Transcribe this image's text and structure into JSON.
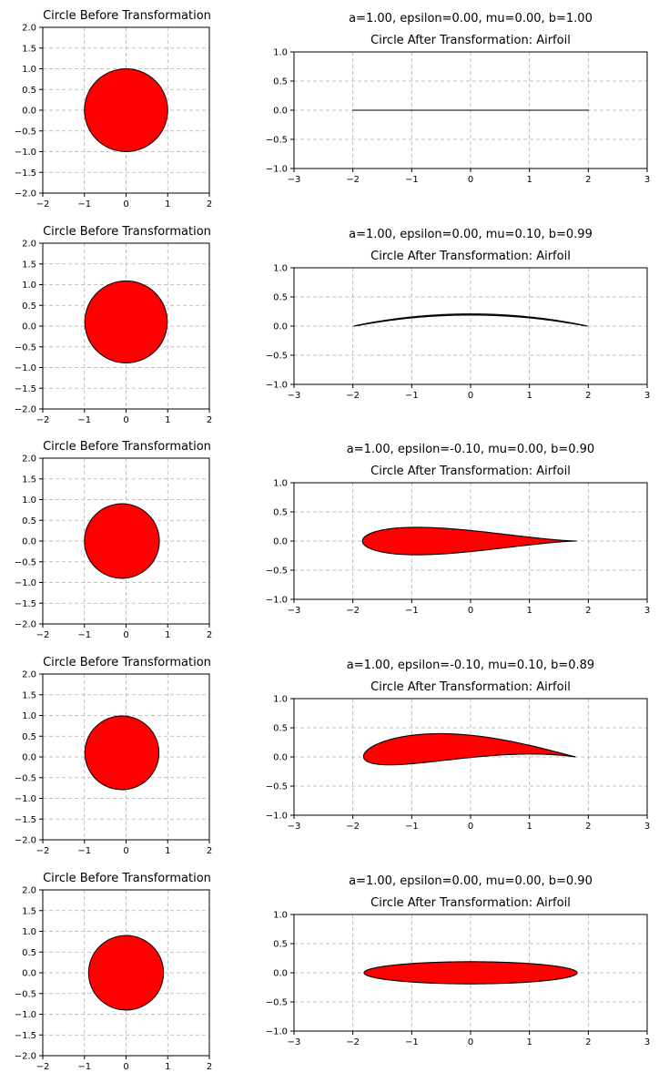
{
  "chart_data": [
    {
      "type": "line",
      "title": "Circle Before Transformation",
      "xlim": [
        -2,
        2
      ],
      "ylim": [
        -2,
        2
      ],
      "xticks": [
        "-2",
        "-1",
        "0",
        "1",
        "2"
      ],
      "yticks": [
        "-2.0",
        "-1.5",
        "-1.0",
        "-0.5",
        "0.0",
        "0.5",
        "1.0",
        "1.5",
        "2.0"
      ],
      "grid": true,
      "shape": "filled circle",
      "center": [
        0,
        0
      ],
      "radius": 1.0,
      "fill_color": "#ff0000",
      "edge_color": "#000000"
    },
    {
      "type": "line",
      "title": "a=1.00, epsilon=0.00, mu=0.00, b=1.00",
      "subtitle": "Circle After Transformation: Airfoil",
      "params": {
        "a": 1.0,
        "epsilon": 0.0,
        "mu": 0.0,
        "b": 1.0
      },
      "xlim": [
        -3,
        3
      ],
      "ylim": [
        -1,
        1
      ],
      "xticks": [
        "-3",
        "-2",
        "-1",
        "0",
        "1",
        "2",
        "3"
      ],
      "yticks": [
        "-1.0",
        "-0.5",
        "0.0",
        "0.5",
        "1.0"
      ],
      "grid": true,
      "shape": "filled airfoil",
      "fill_color": "#ff0000",
      "edge_color": "#000000"
    },
    {
      "type": "line",
      "title": "Circle Before Transformation",
      "xlim": [
        -2,
        2
      ],
      "ylim": [
        -2,
        2
      ],
      "xticks": [
        "-2",
        "-1",
        "0",
        "1",
        "2"
      ],
      "yticks": [
        "-2.0",
        "-1.5",
        "-1.0",
        "-0.5",
        "0.0",
        "0.5",
        "1.0",
        "1.5",
        "2.0"
      ],
      "grid": true,
      "shape": "filled circle",
      "center": [
        0,
        0.1
      ],
      "radius": 0.99,
      "fill_color": "#ff0000",
      "edge_color": "#000000"
    },
    {
      "type": "line",
      "title": "a=1.00, epsilon=0.00, mu=0.10, b=0.99",
      "subtitle": "Circle After Transformation: Airfoil",
      "params": {
        "a": 1.0,
        "epsilon": 0.0,
        "mu": 0.1,
        "b": 0.99
      },
      "xlim": [
        -3,
        3
      ],
      "ylim": [
        -1,
        1
      ],
      "xticks": [
        "-3",
        "-2",
        "-1",
        "0",
        "1",
        "2",
        "3"
      ],
      "yticks": [
        "-1.0",
        "-0.5",
        "0.0",
        "0.5",
        "1.0"
      ],
      "grid": true,
      "shape": "filled airfoil",
      "fill_color": "#ff0000",
      "edge_color": "#000000"
    },
    {
      "type": "line",
      "title": "Circle Before Transformation",
      "xlim": [
        -2,
        2
      ],
      "ylim": [
        -2,
        2
      ],
      "xticks": [
        "-2",
        "-1",
        "0",
        "1",
        "2"
      ],
      "yticks": [
        "-2.0",
        "-1.5",
        "-1.0",
        "-0.5",
        "0.0",
        "0.5",
        "1.0",
        "1.5",
        "2.0"
      ],
      "grid": true,
      "shape": "filled circle",
      "center": [
        -0.1,
        0
      ],
      "radius": 0.9,
      "fill_color": "#ff0000",
      "edge_color": "#000000"
    },
    {
      "type": "line",
      "title": "a=1.00, epsilon=-0.10, mu=0.00, b=0.90",
      "subtitle": "Circle After Transformation: Airfoil",
      "params": {
        "a": 1.0,
        "epsilon": -0.1,
        "mu": 0.0,
        "b": 0.9
      },
      "xlim": [
        -3,
        3
      ],
      "ylim": [
        -1,
        1
      ],
      "xticks": [
        "-3",
        "-2",
        "-1",
        "0",
        "1",
        "2",
        "3"
      ],
      "yticks": [
        "-1.0",
        "-0.5",
        "0.0",
        "0.5",
        "1.0"
      ],
      "grid": true,
      "shape": "filled airfoil",
      "fill_color": "#ff0000",
      "edge_color": "#000000"
    },
    {
      "type": "line",
      "title": "Circle Before Transformation",
      "xlim": [
        -2,
        2
      ],
      "ylim": [
        -2,
        2
      ],
      "xticks": [
        "-2",
        "-1",
        "0",
        "1",
        "2"
      ],
      "yticks": [
        "-2.0",
        "-1.5",
        "-1.0",
        "-0.5",
        "0.0",
        "0.5",
        "1.0",
        "1.5",
        "2.0"
      ],
      "grid": true,
      "shape": "filled circle",
      "center": [
        -0.1,
        0.1
      ],
      "radius": 0.89,
      "fill_color": "#ff0000",
      "edge_color": "#000000"
    },
    {
      "type": "line",
      "title": "a=1.00, epsilon=-0.10, mu=0.10, b=0.89",
      "subtitle": "Circle After Transformation: Airfoil",
      "params": {
        "a": 1.0,
        "epsilon": -0.1,
        "mu": 0.1,
        "b": 0.89
      },
      "xlim": [
        -3,
        3
      ],
      "ylim": [
        -1,
        1
      ],
      "xticks": [
        "-3",
        "-2",
        "-1",
        "0",
        "1",
        "2",
        "3"
      ],
      "yticks": [
        "-1.0",
        "-0.5",
        "0.0",
        "0.5",
        "1.0"
      ],
      "grid": true,
      "shape": "filled airfoil",
      "fill_color": "#ff0000",
      "edge_color": "#000000"
    },
    {
      "type": "line",
      "title": "Circle Before Transformation",
      "xlim": [
        -2,
        2
      ],
      "ylim": [
        -2,
        2
      ],
      "xticks": [
        "-2",
        "-1",
        "0",
        "1",
        "2"
      ],
      "yticks": [
        "-2.0",
        "-1.5",
        "-1.0",
        "-0.5",
        "0.0",
        "0.5",
        "1.0",
        "1.5",
        "2.0"
      ],
      "grid": true,
      "shape": "filled circle",
      "center": [
        0,
        0
      ],
      "radius": 0.9,
      "fill_color": "#ff0000",
      "edge_color": "#000000"
    },
    {
      "type": "line",
      "title": "a=1.00, epsilon=0.00, mu=0.00, b=0.90",
      "subtitle": "Circle After Transformation: Airfoil",
      "params": {
        "a": 1.0,
        "epsilon": 0.0,
        "mu": 0.0,
        "b": 0.9
      },
      "xlim": [
        -3,
        3
      ],
      "ylim": [
        -1,
        1
      ],
      "xticks": [
        "-3",
        "-2",
        "-1",
        "0",
        "1",
        "2",
        "3"
      ],
      "yticks": [
        "-1.0",
        "-0.5",
        "0.0",
        "0.5",
        "1.0"
      ],
      "grid": true,
      "shape": "filled airfoil",
      "fill_color": "#ff0000",
      "edge_color": "#000000"
    }
  ]
}
